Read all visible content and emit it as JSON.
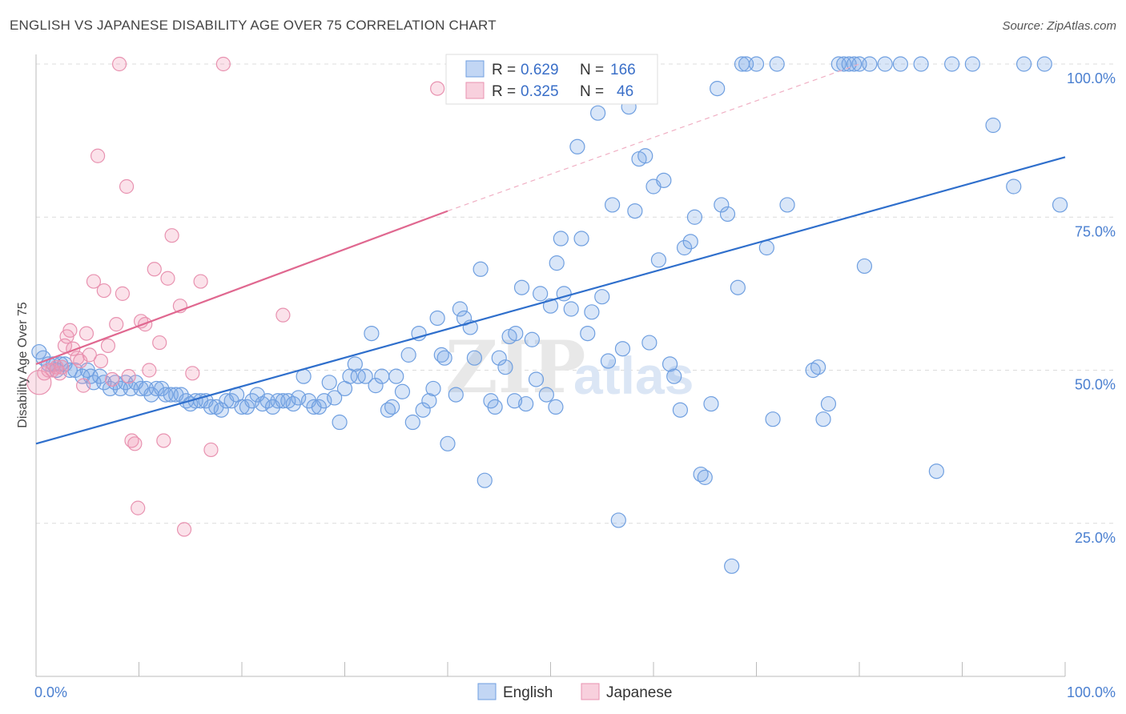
{
  "title": "ENGLISH VS JAPANESE DISABILITY AGE OVER 75 CORRELATION CHART",
  "source": "Source: ZipAtlas.com",
  "watermark": {
    "zip": "ZIP",
    "atlas": "atlas"
  },
  "colors": {
    "english_fill": "rgba(120,165,230,0.28)",
    "english_stroke": "#6f9fe0",
    "english_line": "#2f6fcc",
    "japanese_fill": "rgba(240,150,180,0.28)",
    "japanese_stroke": "#e892b0",
    "japanese_line": "#e06890",
    "grid": "#dcdcdc",
    "tick_text": "#4a7fd0"
  },
  "legend_top": [
    {
      "series": "English",
      "r_label": "R =",
      "r_value": "0.629",
      "n_label": "N =",
      "n_value": "166"
    },
    {
      "series": "Japanese",
      "r_label": "R =",
      "r_value": "0.325",
      "n_label": "N =",
      "n_value": "46"
    }
  ],
  "chart_data": {
    "type": "scatter",
    "title": "ENGLISH VS JAPANESE DISABILITY AGE OVER 75 CORRELATION CHART",
    "ylabel": "Disability Age Over 75",
    "xlabel": "",
    "xlim": [
      0,
      100
    ],
    "ylim": [
      0,
      105
    ],
    "x_tick_labels": [
      "0.0%",
      "100.0%"
    ],
    "y_ticks": [
      25,
      50,
      75,
      100
    ],
    "y_tick_labels": [
      "25.0%",
      "50.0%",
      "75.0%",
      "100.0%"
    ],
    "grid": true,
    "legend": "bottom-center",
    "series": [
      {
        "name": "English",
        "trend": {
          "x": [
            0,
            100
          ],
          "y": [
            38.0,
            84.8
          ]
        },
        "points": [
          [
            0.3,
            53
          ],
          [
            0.7,
            52
          ],
          [
            1.2,
            51
          ],
          [
            1.7,
            51
          ],
          [
            2.0,
            50
          ],
          [
            2.4,
            51
          ],
          [
            2.8,
            51
          ],
          [
            3.3,
            50
          ],
          [
            3.8,
            50
          ],
          [
            4.5,
            49
          ],
          [
            5.0,
            50
          ],
          [
            5.3,
            49
          ],
          [
            5.6,
            48
          ],
          [
            6.2,
            49
          ],
          [
            6.6,
            48
          ],
          [
            7.2,
            47
          ],
          [
            7.7,
            48
          ],
          [
            8.2,
            47
          ],
          [
            8.7,
            48
          ],
          [
            9.2,
            47
          ],
          [
            9.7,
            48
          ],
          [
            10.2,
            47
          ],
          [
            10.7,
            47
          ],
          [
            11.2,
            46
          ],
          [
            11.7,
            47
          ],
          [
            12.2,
            47
          ],
          [
            12.6,
            46
          ],
          [
            13.1,
            46
          ],
          [
            13.6,
            46
          ],
          [
            14.1,
            46
          ],
          [
            14.6,
            45
          ],
          [
            15.0,
            44.5
          ],
          [
            15.5,
            45
          ],
          [
            16.0,
            45
          ],
          [
            16.5,
            45
          ],
          [
            17.0,
            44
          ],
          [
            17.5,
            44
          ],
          [
            18.0,
            43.5
          ],
          [
            18.5,
            45
          ],
          [
            19.0,
            45
          ],
          [
            19.5,
            46
          ],
          [
            20.0,
            44
          ],
          [
            20.5,
            44
          ],
          [
            21.0,
            45
          ],
          [
            21.5,
            46
          ],
          [
            22.0,
            44.5
          ],
          [
            22.5,
            45
          ],
          [
            23.0,
            44
          ],
          [
            23.5,
            45
          ],
          [
            24.0,
            45
          ],
          [
            24.5,
            45
          ],
          [
            25.0,
            44.5
          ],
          [
            25.5,
            45.5
          ],
          [
            26.0,
            49
          ],
          [
            26.5,
            45
          ],
          [
            27.0,
            44
          ],
          [
            27.5,
            44
          ],
          [
            28.0,
            45
          ],
          [
            28.5,
            48
          ],
          [
            29.0,
            45.5
          ],
          [
            29.5,
            41.5
          ],
          [
            30.0,
            47
          ],
          [
            30.5,
            49
          ],
          [
            31.0,
            51
          ],
          [
            31.3,
            49
          ],
          [
            32.0,
            49
          ],
          [
            32.6,
            56
          ],
          [
            33.0,
            47.5
          ],
          [
            33.6,
            49
          ],
          [
            34.2,
            43.5
          ],
          [
            34.6,
            44
          ],
          [
            35.0,
            49
          ],
          [
            35.6,
            46.5
          ],
          [
            36.2,
            52.5
          ],
          [
            36.6,
            41.5
          ],
          [
            37.2,
            56
          ],
          [
            37.6,
            43.5
          ],
          [
            38.2,
            45
          ],
          [
            38.6,
            47
          ],
          [
            39.0,
            58.5
          ],
          [
            39.4,
            52.5
          ],
          [
            39.7,
            52
          ],
          [
            40.0,
            38
          ],
          [
            40.8,
            46
          ],
          [
            41.2,
            60
          ],
          [
            41.6,
            58.5
          ],
          [
            42.2,
            57
          ],
          [
            42.6,
            52
          ],
          [
            43.2,
            66.5
          ],
          [
            43.6,
            32
          ],
          [
            44.2,
            45
          ],
          [
            44.6,
            44
          ],
          [
            45.0,
            52
          ],
          [
            45.6,
            50.5
          ],
          [
            46.0,
            55.5
          ],
          [
            46.6,
            56
          ],
          [
            47.2,
            63.5
          ],
          [
            47.6,
            44.5
          ],
          [
            48.2,
            55
          ],
          [
            48.6,
            48.5
          ],
          [
            49.0,
            62.5
          ],
          [
            49.6,
            46
          ],
          [
            50.0,
            60.5
          ],
          [
            50.6,
            67.5
          ],
          [
            51.0,
            71.5
          ],
          [
            51.3,
            62.5
          ],
          [
            52.0,
            60
          ],
          [
            52.6,
            86.5
          ],
          [
            53.0,
            71.5
          ],
          [
            53.6,
            56
          ],
          [
            54.0,
            59.5
          ],
          [
            54.6,
            92
          ],
          [
            55.0,
            62
          ],
          [
            55.6,
            51.5
          ],
          [
            56.0,
            77
          ],
          [
            56.6,
            25.5
          ],
          [
            57.0,
            53.5
          ],
          [
            57.6,
            93
          ],
          [
            58.2,
            76
          ],
          [
            58.6,
            84.5
          ],
          [
            59.2,
            85
          ],
          [
            59.6,
            54.5
          ],
          [
            60.0,
            80
          ],
          [
            60.5,
            68
          ],
          [
            61.0,
            81
          ],
          [
            61.6,
            51
          ],
          [
            62.0,
            49
          ],
          [
            62.6,
            43.5
          ],
          [
            63.0,
            70
          ],
          [
            63.6,
            71
          ],
          [
            64.0,
            75
          ],
          [
            64.6,
            33
          ],
          [
            65.0,
            32.5
          ],
          [
            65.6,
            44.5
          ],
          [
            66.2,
            96
          ],
          [
            66.6,
            77
          ],
          [
            67.2,
            75.5
          ],
          [
            67.6,
            18
          ],
          [
            68.2,
            63.5
          ],
          [
            68.6,
            100
          ],
          [
            69.0,
            100
          ],
          [
            70.0,
            100
          ],
          [
            71.0,
            70
          ],
          [
            71.6,
            42
          ],
          [
            72.0,
            100
          ],
          [
            73.0,
            77
          ],
          [
            75.5,
            50
          ],
          [
            76.0,
            50.5
          ],
          [
            76.5,
            42
          ],
          [
            77.0,
            44.5
          ],
          [
            78.0,
            100
          ],
          [
            78.5,
            100
          ],
          [
            79.0,
            100
          ],
          [
            79.5,
            100
          ],
          [
            80.0,
            100
          ],
          [
            80.5,
            67
          ],
          [
            81.0,
            100
          ],
          [
            82.5,
            100
          ],
          [
            84.0,
            100
          ],
          [
            86.0,
            100
          ],
          [
            87.5,
            33.5
          ],
          [
            89.0,
            100
          ],
          [
            91.0,
            100
          ],
          [
            93.0,
            90
          ],
          [
            95.0,
            80
          ],
          [
            96.0,
            100
          ],
          [
            98.0,
            100
          ],
          [
            99.5,
            77
          ],
          [
            46.5,
            45
          ],
          [
            50.5,
            44
          ]
        ]
      },
      {
        "name": "Japanese",
        "trend": {
          "x": [
            0,
            40
          ],
          "y": [
            51.0,
            76.0
          ],
          "dashed_to": {
            "x": 80,
            "y": 100
          }
        },
        "points": [
          [
            0.3,
            48
          ],
          [
            0.8,
            49.5
          ],
          [
            1.2,
            50
          ],
          [
            1.6,
            50
          ],
          [
            2.0,
            50.5
          ],
          [
            2.3,
            49.5
          ],
          [
            2.5,
            50.5
          ],
          [
            2.8,
            54
          ],
          [
            3.0,
            55.5
          ],
          [
            3.3,
            56.5
          ],
          [
            3.6,
            53.5
          ],
          [
            4.0,
            52
          ],
          [
            4.3,
            51.5
          ],
          [
            4.6,
            47.5
          ],
          [
            4.9,
            56
          ],
          [
            5.2,
            52.5
          ],
          [
            5.6,
            64.5
          ],
          [
            6.0,
            85
          ],
          [
            6.3,
            51.5
          ],
          [
            6.6,
            63
          ],
          [
            7.0,
            54
          ],
          [
            7.4,
            48.5
          ],
          [
            7.8,
            57.5
          ],
          [
            8.1,
            100
          ],
          [
            8.4,
            62.5
          ],
          [
            8.8,
            80
          ],
          [
            9.0,
            49
          ],
          [
            9.3,
            38.5
          ],
          [
            9.6,
            38
          ],
          [
            9.9,
            27.5
          ],
          [
            10.2,
            58
          ],
          [
            10.6,
            57.5
          ],
          [
            11.0,
            50
          ],
          [
            11.5,
            66.5
          ],
          [
            12.0,
            54.5
          ],
          [
            12.4,
            38.5
          ],
          [
            12.8,
            65
          ],
          [
            13.2,
            72
          ],
          [
            14.0,
            60.5
          ],
          [
            14.4,
            24
          ],
          [
            15.2,
            49.5
          ],
          [
            16.0,
            64.5
          ],
          [
            17.0,
            37
          ],
          [
            18.2,
            100
          ],
          [
            24.0,
            59
          ],
          [
            39.0,
            96
          ]
        ],
        "points_note": ""
      }
    ]
  },
  "legend_bottom": [
    {
      "label": "English"
    },
    {
      "label": "Japanese"
    }
  ]
}
